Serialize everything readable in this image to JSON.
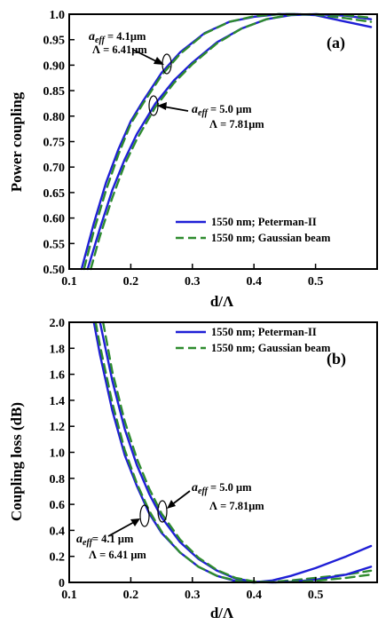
{
  "chart_data": [
    {
      "panel": "(a)",
      "type": "line",
      "xlabel": "d/Λ",
      "ylabel": "Power coupling",
      "xlim": [
        0.1,
        0.6
      ],
      "ylim": [
        0.5,
        1.0
      ],
      "x_ticks": [
        "0.1",
        "0.2",
        "0.3",
        "0.4",
        "0.5"
      ],
      "y_ticks": [
        "0.50",
        "0.55",
        "0.60",
        "0.65",
        "0.70",
        "0.75",
        "0.80",
        "0.85",
        "0.90",
        "0.95",
        "1.0"
      ],
      "legend": {
        "placement": "bottom-right",
        "entries": [
          "1550 nm; Peterman-II",
          "1550 nm; Gaussian beam"
        ]
      },
      "series": [
        {
          "name": "1550 nm; Peterman-II",
          "group": "aeff = 4.1 μm, Λ = 6.41 μm",
          "color": "#1f1fd6",
          "style": "solid",
          "x": [
            0.12,
            0.14,
            0.16,
            0.18,
            0.2,
            0.22,
            0.25,
            0.28,
            0.32,
            0.36,
            0.4,
            0.44,
            0.47,
            0.5,
            0.55,
            0.59
          ],
          "y": [
            0.5,
            0.59,
            0.67,
            0.735,
            0.79,
            0.83,
            0.885,
            0.925,
            0.963,
            0.985,
            0.995,
            1.0,
            1.0,
            0.998,
            0.985,
            0.975
          ]
        },
        {
          "name": "1550 nm; Gaussian beam",
          "group": "aeff = 4.1 μm, Λ = 6.41 μm",
          "color": "#2e8b2e",
          "style": "dashed",
          "x": [
            0.124,
            0.14,
            0.16,
            0.18,
            0.2,
            0.22,
            0.25,
            0.28,
            0.32,
            0.36,
            0.4,
            0.44,
            0.47,
            0.5,
            0.55,
            0.59
          ],
          "y": [
            0.5,
            0.575,
            0.655,
            0.725,
            0.785,
            0.825,
            0.88,
            0.922,
            0.962,
            0.985,
            0.996,
            1.0,
            1.0,
            0.999,
            0.992,
            0.985
          ]
        },
        {
          "name": "1550 nm; Peterman-II",
          "group": "aeff = 5.0 μm, Λ = 7.81 μm",
          "color": "#1f1fd6",
          "style": "solid",
          "x": [
            0.13,
            0.15,
            0.17,
            0.19,
            0.21,
            0.24,
            0.27,
            0.3,
            0.34,
            0.38,
            0.42,
            0.46,
            0.5,
            0.55,
            0.59
          ],
          "y": [
            0.5,
            0.58,
            0.655,
            0.715,
            0.765,
            0.825,
            0.87,
            0.905,
            0.945,
            0.972,
            0.99,
            0.998,
            1.0,
            0.997,
            0.99
          ]
        },
        {
          "name": "1550 nm; Gaussian beam",
          "group": "aeff = 5.0 μm, Λ = 7.81 μm",
          "color": "#2e8b2e",
          "style": "dashed",
          "x": [
            0.135,
            0.15,
            0.17,
            0.19,
            0.21,
            0.24,
            0.27,
            0.3,
            0.34,
            0.38,
            0.42,
            0.46,
            0.5,
            0.55,
            0.59
          ],
          "y": [
            0.5,
            0.565,
            0.64,
            0.705,
            0.755,
            0.818,
            0.865,
            0.902,
            0.943,
            0.972,
            0.99,
            0.999,
            1.0,
            0.998,
            0.993
          ]
        }
      ],
      "annotations": [
        {
          "lines": [
            "a_eff = 4.1μm",
            "Λ = 6.41μm"
          ],
          "target": [
            0.26,
            0.895
          ]
        },
        {
          "lines": [
            "a_eff = 5.0 μm",
            "Λ = 7.81μm"
          ],
          "target": [
            0.235,
            0.82
          ]
        }
      ]
    },
    {
      "panel": "(b)",
      "type": "line",
      "xlabel": "d/Λ",
      "ylabel": "Coupling loss (dB)",
      "xlim": [
        0.1,
        0.6
      ],
      "ylim": [
        0,
        2.0
      ],
      "x_ticks": [
        "0.1",
        "0.2",
        "0.3",
        "0.4",
        "0.5"
      ],
      "y_ticks": [
        "0",
        "0.2",
        "0.4",
        "0.6",
        "0.8",
        "1.0",
        "1.2",
        "1.4",
        "1.6",
        "1.8",
        "2.0"
      ],
      "legend": {
        "placement": "top-right",
        "entries": [
          "1550 nm; Peterman-II",
          "1550 nm; Gaussian beam"
        ]
      },
      "series": [
        {
          "name": "1550 nm; Peterman-II",
          "group": "aeff = 4.1 μm, Λ = 6.41 μm",
          "color": "#1f1fd6",
          "style": "solid",
          "x": [
            0.14,
            0.15,
            0.17,
            0.19,
            0.21,
            0.23,
            0.25,
            0.28,
            0.31,
            0.34,
            0.37,
            0.4,
            0.43,
            0.46,
            0.5,
            0.55,
            0.59
          ],
          "y": [
            2.0,
            1.75,
            1.32,
            0.98,
            0.74,
            0.53,
            0.38,
            0.23,
            0.12,
            0.05,
            0.01,
            0.0,
            0.015,
            0.05,
            0.11,
            0.2,
            0.28
          ]
        },
        {
          "name": "1550 nm; Gaussian beam",
          "group": "aeff = 4.1 μm, Λ = 6.41 μm",
          "color": "#2e8b2e",
          "style": "dashed",
          "x": [
            0.143,
            0.15,
            0.17,
            0.19,
            0.21,
            0.23,
            0.25,
            0.28,
            0.31,
            0.34,
            0.37,
            0.4,
            0.43,
            0.46,
            0.5,
            0.55,
            0.59
          ],
          "y": [
            2.0,
            1.82,
            1.38,
            1.02,
            0.76,
            0.55,
            0.39,
            0.23,
            0.12,
            0.05,
            0.015,
            0.0,
            0.005,
            0.015,
            0.035,
            0.06,
            0.09
          ]
        },
        {
          "name": "1550 nm; Peterman-II",
          "group": "aeff = 5.0 μm, Λ = 7.81 μm",
          "color": "#1f1fd6",
          "style": "solid",
          "x": [
            0.15,
            0.17,
            0.19,
            0.21,
            0.23,
            0.25,
            0.28,
            0.31,
            0.34,
            0.37,
            0.4,
            0.43,
            0.46,
            0.5,
            0.55,
            0.59
          ],
          "y": [
            2.0,
            1.55,
            1.18,
            0.9,
            0.68,
            0.5,
            0.31,
            0.18,
            0.09,
            0.03,
            0.005,
            0.0,
            0.005,
            0.02,
            0.06,
            0.12
          ]
        },
        {
          "name": "1550 nm; Gaussian beam",
          "group": "aeff = 5.0 μm, Λ = 7.81 μm",
          "color": "#2e8b2e",
          "style": "dashed",
          "x": [
            0.155,
            0.17,
            0.19,
            0.21,
            0.23,
            0.25,
            0.28,
            0.31,
            0.34,
            0.37,
            0.4,
            0.43,
            0.46,
            0.5,
            0.55,
            0.59
          ],
          "y": [
            2.0,
            1.62,
            1.24,
            0.95,
            0.72,
            0.53,
            0.33,
            0.19,
            0.095,
            0.035,
            0.007,
            0.0,
            0.003,
            0.012,
            0.035,
            0.06
          ]
        }
      ],
      "annotations": [
        {
          "lines": [
            "a_eff = 5.0 μm",
            "Λ = 7.81μm"
          ],
          "target": [
            0.25,
            0.55
          ]
        },
        {
          "lines": [
            "a_eff = 4.1 μm",
            "Λ = 6.41 μm"
          ],
          "target": [
            0.22,
            0.5
          ]
        }
      ]
    }
  ]
}
